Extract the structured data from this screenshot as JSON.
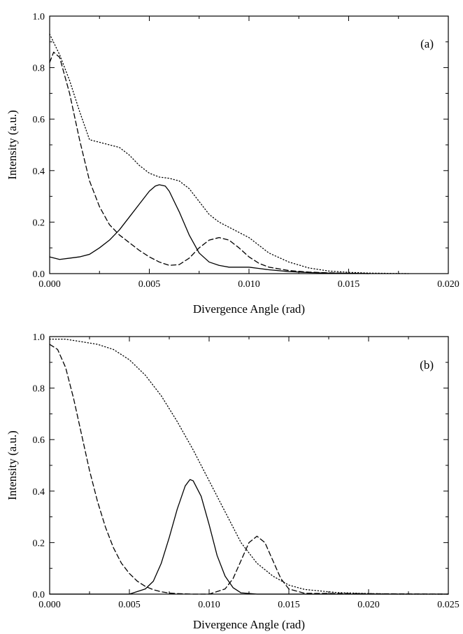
{
  "chart_data": [
    {
      "type": "line",
      "annotation": "(a)",
      "xlabel": "Divergence Angle (rad)",
      "ylabel": "Intensity (a.u.)",
      "xlim": [
        0.0,
        0.02
      ],
      "ylim": [
        0.0,
        1.0
      ],
      "xticks": [
        "0.000",
        "0.005",
        "0.010",
        "0.015",
        "0.020"
      ],
      "yticks": [
        "0.0",
        "0.2",
        "0.4",
        "0.6",
        "0.8",
        "1.0"
      ],
      "grid": false,
      "series": [
        {
          "style": "solid",
          "x": [
            0.0,
            0.0005,
            0.001,
            0.0015,
            0.002,
            0.0025,
            0.003,
            0.0035,
            0.004,
            0.0045,
            0.005,
            0.0053,
            0.0055,
            0.0058,
            0.006,
            0.0065,
            0.007,
            0.0075,
            0.008,
            0.0085,
            0.009,
            0.0095,
            0.01,
            0.0105,
            0.011,
            0.012,
            0.013,
            0.014,
            0.016
          ],
          "y": [
            0.065,
            0.055,
            0.06,
            0.065,
            0.075,
            0.1,
            0.13,
            0.17,
            0.22,
            0.27,
            0.32,
            0.34,
            0.345,
            0.34,
            0.32,
            0.24,
            0.15,
            0.08,
            0.045,
            0.032,
            0.025,
            0.025,
            0.025,
            0.02,
            0.015,
            0.008,
            0.004,
            0.002,
            0.0
          ]
        },
        {
          "style": "dashed",
          "x": [
            0.0,
            0.0002,
            0.0005,
            0.001,
            0.0015,
            0.002,
            0.0025,
            0.003,
            0.0035,
            0.004,
            0.0045,
            0.005,
            0.0055,
            0.006,
            0.0065,
            0.007,
            0.0075,
            0.008,
            0.0085,
            0.009,
            0.0095,
            0.01,
            0.0105,
            0.011,
            0.012,
            0.013,
            0.014,
            0.016
          ],
          "y": [
            0.82,
            0.86,
            0.84,
            0.7,
            0.52,
            0.36,
            0.26,
            0.19,
            0.15,
            0.12,
            0.09,
            0.065,
            0.045,
            0.032,
            0.035,
            0.06,
            0.1,
            0.13,
            0.14,
            0.13,
            0.1,
            0.065,
            0.04,
            0.025,
            0.012,
            0.006,
            0.003,
            0.0
          ]
        },
        {
          "style": "dotted",
          "x": [
            0.0,
            0.0005,
            0.001,
            0.0015,
            0.002,
            0.0025,
            0.003,
            0.0035,
            0.004,
            0.0045,
            0.005,
            0.0055,
            0.006,
            0.0065,
            0.007,
            0.0075,
            0.008,
            0.0085,
            0.009,
            0.0095,
            0.01,
            0.0105,
            0.011,
            0.012,
            0.013,
            0.014,
            0.015,
            0.016,
            0.018
          ],
          "y": [
            0.93,
            0.85,
            0.75,
            0.63,
            0.52,
            0.51,
            0.5,
            0.49,
            0.46,
            0.42,
            0.39,
            0.375,
            0.37,
            0.36,
            0.33,
            0.28,
            0.23,
            0.2,
            0.18,
            0.16,
            0.14,
            0.11,
            0.08,
            0.045,
            0.022,
            0.01,
            0.005,
            0.002,
            0.0
          ]
        }
      ]
    },
    {
      "type": "line",
      "annotation": "(b)",
      "xlabel": "Divergence Angle (rad)",
      "ylabel": "Intensity (a.u.)",
      "xlim": [
        0.0,
        0.025
      ],
      "ylim": [
        0.0,
        1.0
      ],
      "xticks": [
        "0.000",
        "0.005",
        "0.010",
        "0.015",
        "0.020",
        "0.025"
      ],
      "yticks": [
        "0.0",
        "0.2",
        "0.4",
        "0.6",
        "0.8",
        "1.0"
      ],
      "grid": false,
      "series": [
        {
          "style": "solid",
          "x": [
            0.0,
            0.005,
            0.006,
            0.0065,
            0.007,
            0.0075,
            0.008,
            0.0085,
            0.0088,
            0.009,
            0.0095,
            0.01,
            0.0105,
            0.011,
            0.0115,
            0.012,
            0.013,
            0.025
          ],
          "y": [
            0.0,
            0.0,
            0.02,
            0.05,
            0.12,
            0.22,
            0.33,
            0.42,
            0.445,
            0.44,
            0.38,
            0.27,
            0.15,
            0.07,
            0.025,
            0.005,
            0.0,
            0.0
          ]
        },
        {
          "style": "dashed",
          "x": [
            0.0,
            0.0005,
            0.001,
            0.0015,
            0.002,
            0.0025,
            0.003,
            0.0035,
            0.004,
            0.0045,
            0.005,
            0.0055,
            0.006,
            0.0065,
            0.007,
            0.0075,
            0.008,
            0.0085,
            0.009,
            0.01,
            0.011,
            0.0115,
            0.012,
            0.0125,
            0.013,
            0.0135,
            0.014,
            0.0145,
            0.015,
            0.016,
            0.025
          ],
          "y": [
            0.97,
            0.95,
            0.88,
            0.76,
            0.62,
            0.48,
            0.36,
            0.26,
            0.18,
            0.12,
            0.08,
            0.05,
            0.03,
            0.017,
            0.009,
            0.004,
            0.002,
            0.001,
            0.0,
            0.0,
            0.02,
            0.06,
            0.13,
            0.2,
            0.225,
            0.2,
            0.13,
            0.06,
            0.02,
            0.003,
            0.0
          ]
        },
        {
          "style": "dotted",
          "x": [
            0.0,
            0.001,
            0.002,
            0.003,
            0.004,
            0.005,
            0.006,
            0.007,
            0.008,
            0.009,
            0.01,
            0.011,
            0.012,
            0.013,
            0.014,
            0.015,
            0.016,
            0.018,
            0.02,
            0.022,
            0.025
          ],
          "y": [
            0.99,
            0.99,
            0.98,
            0.97,
            0.95,
            0.91,
            0.85,
            0.77,
            0.67,
            0.56,
            0.44,
            0.32,
            0.2,
            0.12,
            0.07,
            0.035,
            0.018,
            0.006,
            0.002,
            0.0,
            0.0
          ]
        }
      ]
    }
  ]
}
